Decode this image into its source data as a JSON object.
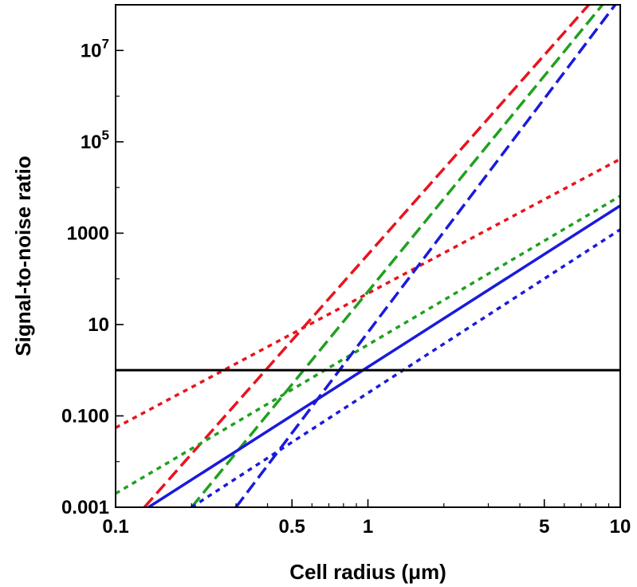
{
  "chart_data": {
    "type": "line",
    "xlabel": "Cell radius (μm)",
    "ylabel": "Signal-to-noise ratio",
    "xscale": "log",
    "yscale": "log",
    "xlim": [
      0.1,
      10
    ],
    "ylim": [
      0.001,
      100000000
    ],
    "grid": false,
    "legend": "none",
    "x_ticks": [
      {
        "value": 0.1,
        "label": "0.1"
      },
      {
        "value": 0.5,
        "label": "0.5"
      },
      {
        "value": 1,
        "label": "1"
      },
      {
        "value": 5,
        "label": "5"
      },
      {
        "value": 10,
        "label": "10"
      }
    ],
    "y_ticks": [
      {
        "value": 0.001,
        "label": "0.001",
        "sup": ""
      },
      {
        "value": 0.1,
        "label": "0.100",
        "sup": ""
      },
      {
        "value": 10,
        "label": "10",
        "sup": ""
      },
      {
        "value": 1000,
        "label": "1000",
        "sup": ""
      },
      {
        "value": 100000,
        "label": "10",
        "sup": "5"
      },
      {
        "value": 10000000,
        "label": "10",
        "sup": "7"
      }
    ],
    "threshold": {
      "y": 1,
      "color": "#000000",
      "style": "solid"
    },
    "series": [
      {
        "color": "#e8141e",
        "style": "dashed",
        "x": [
          0.13,
          10
        ],
        "y": [
          0.001,
          600000000
        ]
      },
      {
        "color": "#e8141e",
        "style": "dotted",
        "x": [
          0.1,
          10
        ],
        "y": [
          0.055,
          42000
        ]
      },
      {
        "color": "#20a020",
        "style": "dashed",
        "x": [
          0.2,
          10
        ],
        "y": [
          0.001,
          300000000
        ]
      },
      {
        "color": "#20a020",
        "style": "dotted",
        "x": [
          0.1,
          10
        ],
        "y": [
          0.002,
          6500
        ]
      },
      {
        "color": "#1a1adc",
        "style": "solid",
        "x": [
          0.135,
          10
        ],
        "y": [
          0.001,
          4000
        ]
      },
      {
        "color": "#1a1adc",
        "style": "dashed",
        "x": [
          0.3,
          10
        ],
        "y": [
          0.001,
          140000000
        ]
      },
      {
        "color": "#1a1adc",
        "style": "dotted",
        "x": [
          0.2,
          10
        ],
        "y": [
          0.001,
          1200
        ]
      }
    ]
  }
}
